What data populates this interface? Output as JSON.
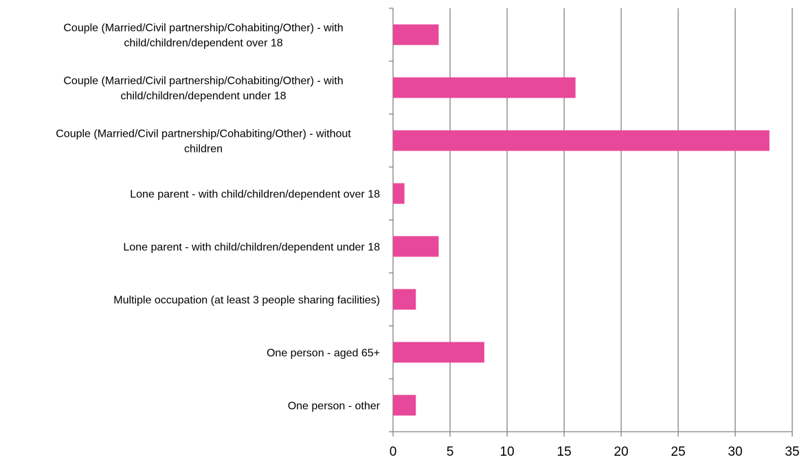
{
  "chart_data": {
    "type": "bar",
    "orientation": "horizontal",
    "categories": [
      "Couple (Married/Civil partnership/Cohabiting/Other) - with child/children/dependent over 18",
      "Couple (Married/Civil partnership/Cohabiting/Other) - with child/children/dependent under 18",
      "Couple (Married/Civil partnership/Cohabiting/Other) - without children",
      "Lone parent - with child/children/dependent over 18",
      "Lone parent - with child/children/dependent under 18",
      "Multiple occupation (at least 3 people sharing facilities)",
      "One person - aged 65+",
      "One person - other"
    ],
    "category_lines": [
      [
        "Couple (Married/Civil partnership/Cohabiting/Other) - with",
        "child/children/dependent over 18"
      ],
      [
        "Couple (Married/Civil partnership/Cohabiting/Other) - with",
        "child/children/dependent under 18"
      ],
      [
        "Couple (Married/Civil partnership/Cohabiting/Other) - without",
        "children"
      ],
      [
        "Lone parent - with child/children/dependent over 18"
      ],
      [
        "Lone parent - with child/children/dependent under 18"
      ],
      [
        "Multiple occupation (at least 3 people sharing facilities)"
      ],
      [
        "One person - aged 65+"
      ],
      [
        "One person - other"
      ]
    ],
    "values": [
      4,
      16,
      33,
      1,
      4,
      2,
      8,
      2
    ],
    "xlim": [
      0,
      35
    ],
    "xticks": [
      "0",
      "5",
      "10",
      "15",
      "20",
      "25",
      "30",
      "35"
    ],
    "title": "",
    "xlabel": "",
    "ylabel": "",
    "grid": "vertical",
    "legend": "none",
    "bar_color": "#e8489a",
    "grid_color": "#808080",
    "axis_color": "#808080"
  }
}
